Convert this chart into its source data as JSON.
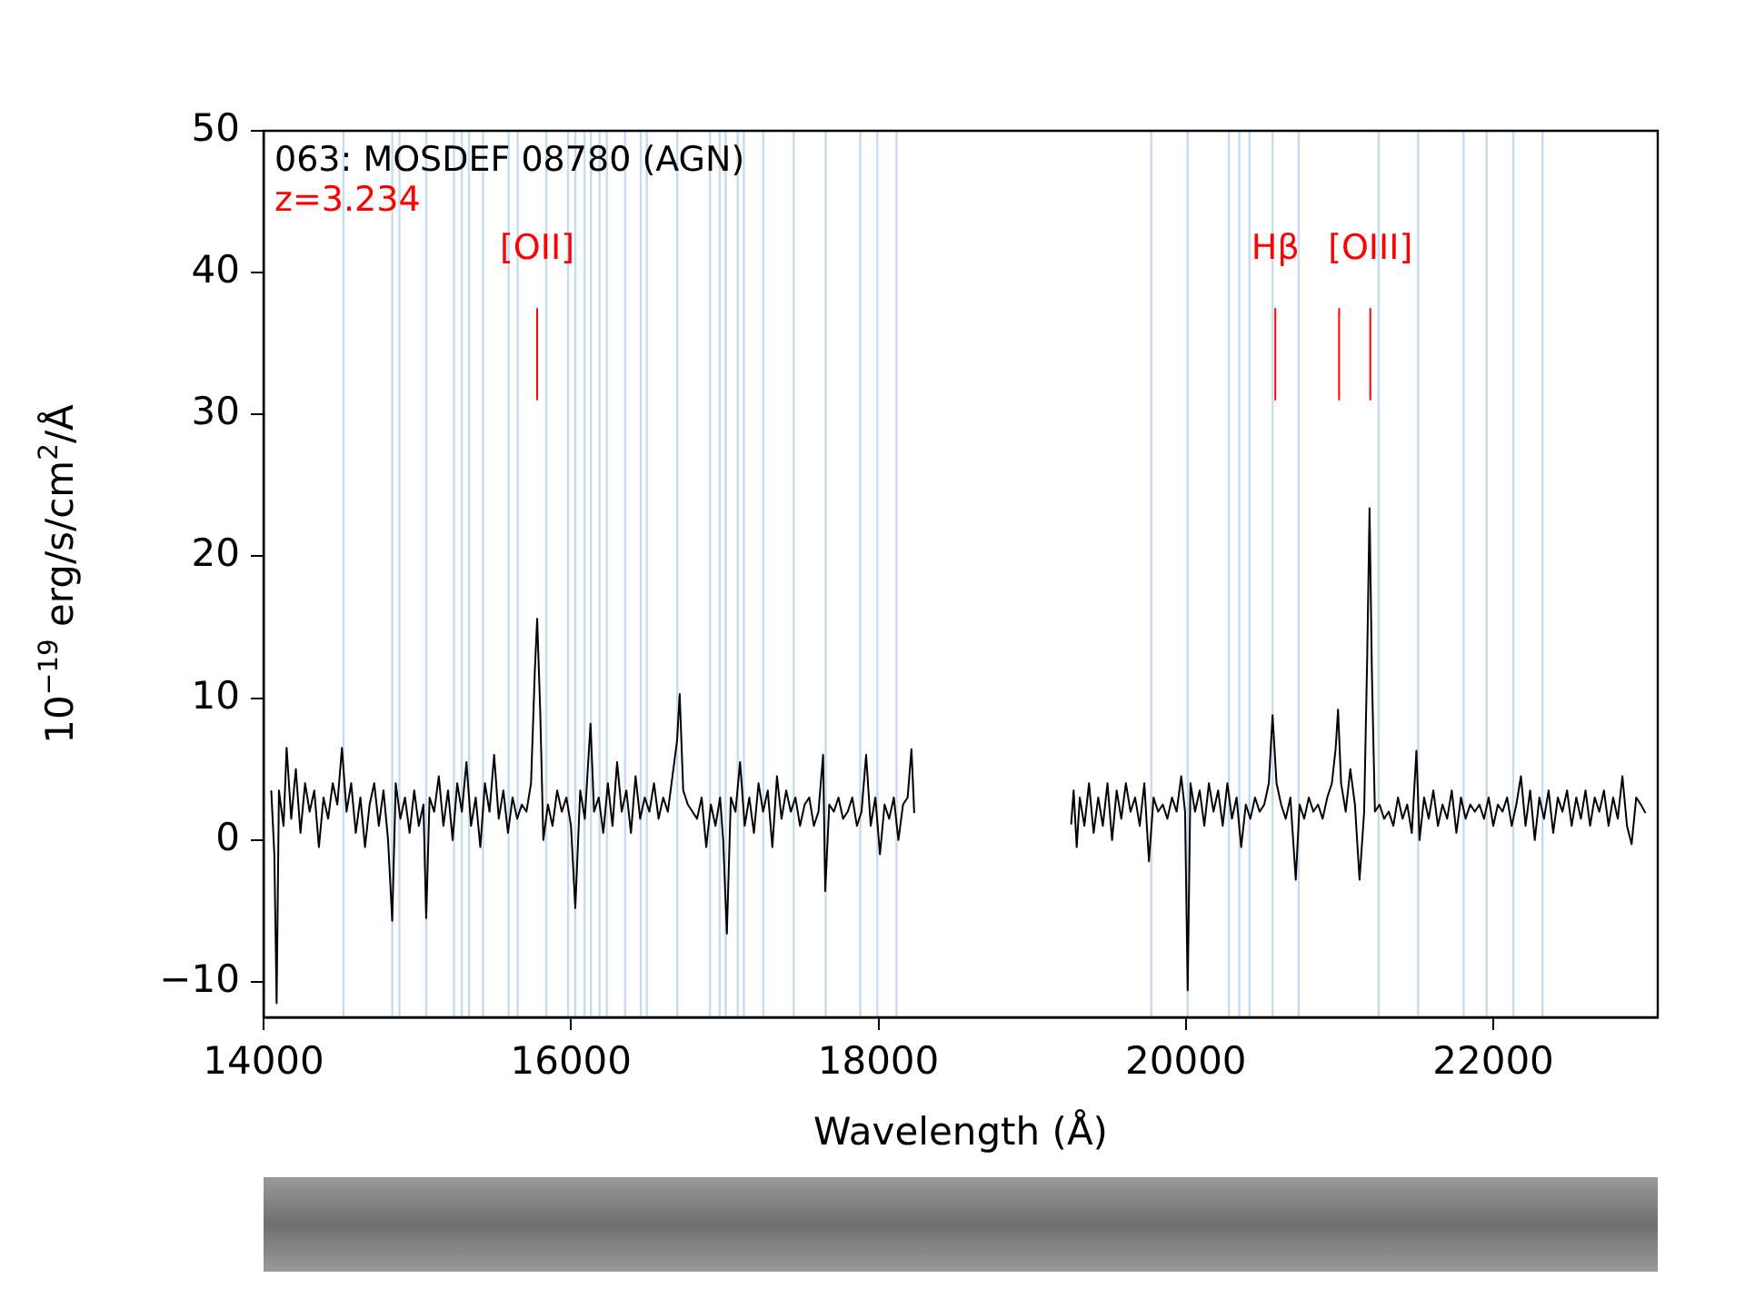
{
  "chart_data": {
    "type": "line",
    "title": "063: MOSDEF 08780 (AGN)",
    "xlabel": "Wavelength (Å)",
    "ylabel": "10$^{−19}$ erg/s/cm$^{2}$/Å",
    "xlim": [
      14000,
      23070
    ],
    "xticks": [
      14000,
      16000,
      18000,
      20000,
      22000
    ],
    "ylim": [
      -12.5,
      50
    ],
    "yticks": [
      -10,
      0,
      10,
      20,
      30,
      40,
      50
    ],
    "grid": false,
    "legend": false,
    "marker": "none",
    "line_style": "solid",
    "annotations": [
      "z=3.234",
      {
        "text": "[OII]",
        "x": 15780,
        "y": 41
      },
      {
        "text": "Hβ",
        "x": 20582,
        "y": 41
      },
      {
        "text": "[OIII]",
        "x": 21200,
        "y": 41
      }
    ],
    "ref_lines": [
      {
        "axis": "x",
        "value": 14520,
        "color": "#c6dbef"
      },
      {
        "axis": "x",
        "value": 14837,
        "color": "#c6dbef"
      },
      {
        "axis": "x",
        "value": 14884,
        "color": "#c6dbef"
      },
      {
        "axis": "x",
        "value": 15058,
        "color": "#c6dbef"
      },
      {
        "axis": "x",
        "value": 15239,
        "color": "#c6dbef"
      },
      {
        "axis": "x",
        "value": 15290,
        "color": "#c6dbef"
      },
      {
        "axis": "x",
        "value": 15337,
        "color": "#c6dbef"
      },
      {
        "axis": "x",
        "value": 15428,
        "color": "#c6dbef"
      },
      {
        "axis": "x",
        "value": 15594,
        "color": "#c6dbef"
      },
      {
        "axis": "x",
        "value": 15653,
        "color": "#c6dbef"
      },
      {
        "axis": "x",
        "value": 15839,
        "color": "#c6dbef"
      },
      {
        "axis": "x",
        "value": 15981,
        "color": "#c6dbef"
      },
      {
        "axis": "x",
        "value": 16028,
        "color": "#c6dbef"
      },
      {
        "axis": "x",
        "value": 16088,
        "color": "#c6dbef"
      },
      {
        "axis": "x",
        "value": 16130,
        "color": "#c6dbef"
      },
      {
        "axis": "x",
        "value": 16186,
        "color": "#c6dbef"
      },
      {
        "axis": "x",
        "value": 16233,
        "color": "#c6dbef"
      },
      {
        "axis": "x",
        "value": 16352,
        "color": "#c6dbef"
      },
      {
        "axis": "x",
        "value": 16454,
        "color": "#c6dbef"
      },
      {
        "axis": "x",
        "value": 16493,
        "color": "#c6dbef"
      },
      {
        "axis": "x",
        "value": 16691,
        "color": "#c6dbef"
      },
      {
        "axis": "x",
        "value": 16904,
        "color": "#c6dbef"
      },
      {
        "axis": "x",
        "value": 16967,
        "color": "#c6dbef"
      },
      {
        "axis": "x",
        "value": 17006,
        "color": "#c6dbef"
      },
      {
        "axis": "x",
        "value": 17085,
        "color": "#c6dbef"
      },
      {
        "axis": "x",
        "value": 17124,
        "color": "#c6dbef"
      },
      {
        "axis": "x",
        "value": 17251,
        "color": "#c6dbef"
      },
      {
        "axis": "x",
        "value": 17449,
        "color": "#c6dbef"
      },
      {
        "axis": "x",
        "value": 17657,
        "color": "#c6dbef"
      },
      {
        "axis": "x",
        "value": 17882,
        "color": "#c6dbef"
      },
      {
        "axis": "x",
        "value": 17993,
        "color": "#c6dbef"
      },
      {
        "axis": "x",
        "value": 18118,
        "color": "#c6dbef"
      },
      {
        "axis": "x",
        "value": 19775,
        "color": "#c6dbef"
      },
      {
        "axis": "x",
        "value": 20012,
        "color": "#c6dbef"
      },
      {
        "axis": "x",
        "value": 20280,
        "color": "#c6dbef"
      },
      {
        "axis": "x",
        "value": 20348,
        "color": "#c6dbef"
      },
      {
        "axis": "x",
        "value": 20414,
        "color": "#c6dbef"
      },
      {
        "axis": "x",
        "value": 20564,
        "color": "#c6dbef"
      },
      {
        "axis": "x",
        "value": 20734,
        "color": "#c6dbef"
      },
      {
        "axis": "x",
        "value": 21254,
        "color": "#c6dbef"
      },
      {
        "axis": "x",
        "value": 21511,
        "color": "#c6dbef"
      },
      {
        "axis": "x",
        "value": 21807,
        "color": "#c6dbef"
      },
      {
        "axis": "x",
        "value": 21957,
        "color": "#c6dbef"
      },
      {
        "axis": "x",
        "value": 22130,
        "color": "#c6dbef"
      },
      {
        "axis": "x",
        "value": 22320,
        "color": "#c6dbef"
      }
    ],
    "series": [
      {
        "color": "#000000",
        "x": [
          14050,
          14070,
          14085,
          14100,
          14130,
          14150,
          14180,
          14210,
          14240,
          14270,
          14300,
          14330,
          14360,
          14390,
          14420,
          14450,
          14480,
          14510,
          14540,
          14570,
          14600,
          14630,
          14660,
          14690,
          14720,
          14750,
          14780,
          14810,
          14837,
          14860,
          14890,
          14920,
          14950,
          14980,
          15010,
          15040,
          15058,
          15080,
          15110,
          15140,
          15170,
          15200,
          15230,
          15260,
          15290,
          15320,
          15350,
          15380,
          15410,
          15440,
          15470,
          15500,
          15530,
          15560,
          15590,
          15620,
          15650,
          15680,
          15710,
          15740,
          15765,
          15780,
          15800,
          15820,
          15850,
          15880,
          15910,
          15940,
          15970,
          16000,
          16028,
          16060,
          16090,
          16127,
          16150,
          16180,
          16210,
          16240,
          16270,
          16300,
          16330,
          16360,
          16390,
          16420,
          16450,
          16480,
          16510,
          16540,
          16570,
          16600,
          16630,
          16660,
          16690,
          16707,
          16730,
          16760,
          16790,
          16820,
          16850,
          16880,
          16910,
          16940,
          16970,
          16990,
          17014,
          17040,
          17070,
          17100,
          17130,
          17160,
          17190,
          17220,
          17250,
          17280,
          17310,
          17340,
          17370,
          17400,
          17430,
          17460,
          17490,
          17520,
          17550,
          17580,
          17610,
          17640,
          17654,
          17680,
          17710,
          17740,
          17770,
          17800,
          17830,
          17860,
          17890,
          17920,
          17950,
          17980,
          18010,
          18040,
          18070,
          18100,
          18130,
          18160,
          18190,
          18215,
          18233,
          18700,
          19254,
          19270,
          19290,
          19310,
          19340,
          19370,
          19400,
          19430,
          19460,
          19490,
          19520,
          19550,
          19580,
          19610,
          19640,
          19670,
          19700,
          19730,
          19760,
          19790,
          19820,
          19850,
          19880,
          19910,
          19940,
          19970,
          19995,
          20012,
          20030,
          20060,
          20090,
          20120,
          20150,
          20180,
          20210,
          20240,
          20270,
          20300,
          20330,
          20360,
          20390,
          20420,
          20450,
          20480,
          20510,
          20540,
          20564,
          20590,
          20620,
          20650,
          20680,
          20715,
          20740,
          20770,
          20800,
          20830,
          20860,
          20890,
          20920,
          20950,
          20975,
          20990,
          21010,
          21040,
          21070,
          21100,
          21130,
          21160,
          21180,
          21195,
          21210,
          21230,
          21260,
          21290,
          21320,
          21350,
          21380,
          21410,
          21440,
          21470,
          21500,
          21520,
          21550,
          21580,
          21610,
          21640,
          21670,
          21700,
          21730,
          21760,
          21790,
          21820,
          21850,
          21880,
          21910,
          21940,
          21970,
          22000,
          22030,
          22060,
          22090,
          22120,
          22150,
          22180,
          22210,
          22240,
          22270,
          22300,
          22330,
          22360,
          22390,
          22420,
          22450,
          22480,
          22510,
          22540,
          22570,
          22600,
          22630,
          22660,
          22690,
          22720,
          22750,
          22780,
          22810,
          22840,
          22870,
          22900,
          22930,
          22960,
          22990
        ],
        "values": [
          3.5,
          -1,
          -11.5,
          3.5,
          1,
          6.5,
          1.5,
          5,
          0.5,
          4,
          2,
          3.5,
          -0.5,
          3,
          1.5,
          4,
          2.5,
          6.5,
          2,
          4,
          0.5,
          3,
          -0.5,
          2.5,
          4,
          1,
          3.5,
          0,
          -5.7,
          4,
          1.5,
          3,
          0.5,
          3.5,
          1,
          2.5,
          -5.5,
          3,
          2,
          4.5,
          1,
          3.5,
          0,
          4,
          2,
          5.5,
          1,
          3,
          -0.5,
          4,
          2,
          6,
          1.5,
          3.5,
          0.5,
          3,
          1.5,
          2.5,
          2,
          4,
          12,
          15.6,
          9,
          0,
          2.5,
          1,
          3.5,
          2,
          3,
          1,
          -4.8,
          3.5,
          1.5,
          8.2,
          2,
          3,
          0.5,
          4,
          1,
          5.5,
          2,
          3.5,
          0.5,
          4.5,
          1.5,
          3,
          2,
          4,
          1.5,
          3,
          2,
          4.5,
          7,
          10.3,
          3.5,
          2.5,
          2,
          1.5,
          3,
          -0.5,
          2.5,
          1,
          3,
          0,
          -6.6,
          3,
          2,
          5.5,
          1,
          3,
          0.5,
          4,
          2,
          3.5,
          -0.5,
          4.5,
          1.5,
          3.5,
          2,
          3,
          1,
          2.5,
          3,
          1,
          2,
          6,
          -3.6,
          2.5,
          2,
          3,
          1.5,
          2,
          3,
          1,
          2,
          6,
          1,
          3,
          -1,
          2.5,
          1.5,
          3,
          0,
          2.5,
          3,
          6.4,
          1.9,
          null,
          1.1,
          3.5,
          -0.5,
          3,
          1,
          4,
          0.5,
          3,
          1,
          4,
          0,
          3.5,
          1.5,
          4,
          2,
          3,
          1,
          4,
          -1.5,
          3,
          2,
          2.5,
          1.5,
          3,
          2,
          4.5,
          2,
          -10.6,
          4,
          2,
          3.5,
          1,
          4,
          2,
          3.5,
          1,
          4,
          1.5,
          3,
          -0.5,
          2.5,
          1.5,
          3,
          2,
          2.5,
          4,
          8.8,
          4,
          2.5,
          1.5,
          3,
          -2.8,
          2.5,
          1.5,
          3,
          2,
          2.5,
          1.5,
          3,
          4,
          6.5,
          9.2,
          4,
          2,
          5,
          2.5,
          -2.8,
          2,
          13,
          23.4,
          12,
          2,
          2.5,
          1.5,
          2,
          1,
          3,
          1.5,
          2.5,
          0.5,
          6.3,
          0,
          3,
          1.5,
          3.5,
          1,
          2.5,
          1.5,
          3.5,
          0.5,
          3,
          1.5,
          2.5,
          2,
          2.5,
          1.5,
          3,
          1,
          2.5,
          2,
          3,
          1,
          2.5,
          4.5,
          1,
          3.5,
          0,
          3,
          1.5,
          3.5,
          0.5,
          3,
          2,
          3.5,
          1,
          3,
          1.5,
          3.5,
          1,
          3,
          2,
          3.5,
          1,
          3,
          1.5,
          4.5,
          1,
          -0.3,
          3,
          2.5,
          1.9
        ]
      },
      {
        "color": "#ff0000",
        "x": [
          15780,
          15780
        ],
        "values": [
          31,
          37.5
        ]
      },
      {
        "color": "#ff0000",
        "x": [
          20582,
          20582
        ],
        "values": [
          31,
          37.5
        ]
      },
      {
        "color": "#ff0000",
        "x": [
          20997,
          20997
        ],
        "values": [
          31,
          37.5
        ]
      },
      {
        "color": "#ff0000",
        "x": [
          21200,
          21200
        ],
        "values": [
          31,
          37.5
        ]
      }
    ]
  }
}
